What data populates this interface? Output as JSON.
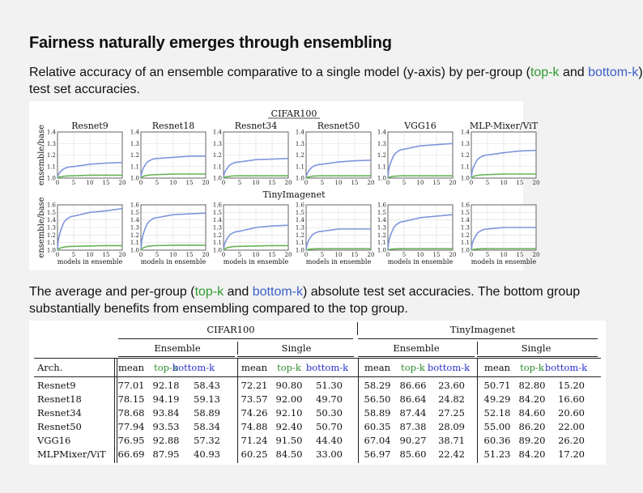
{
  "title": "Fairness naturally emerges through ensembling",
  "para1": {
    "before": "Relative accuracy of an ensemble comparative to a single model (y-axis) by per-group (",
    "topk": "top-k",
    "and": " and ",
    "bottomk": "bottom-k",
    "after": ") test set accuracies."
  },
  "para2": {
    "before": "The average and per-group (",
    "topk": "top-k",
    "and": " and ",
    "bottomk": "bottom-k",
    "after": ") absolute test set accuracies. The bottom group substantially benefits from ensembling compared to the top group."
  },
  "colors": {
    "topk": "#2e9a2e",
    "bottomk": "#3a5fc8",
    "plot_green": "#66b456",
    "plot_blue": "#7f95dc"
  },
  "figure": {
    "row_titles": [
      "CIFAR100",
      "TinyImagenet"
    ],
    "ylabel": "ensemble/base",
    "xlabel": "models in ensemble"
  },
  "chart_data": [
    {
      "type": "line",
      "dataset": "CIFAR100",
      "title": "Resnet9",
      "ylim": [
        1.0,
        1.4
      ],
      "yticks": [
        1.0,
        1.1,
        1.2,
        1.3,
        1.4
      ],
      "xticks": [
        0,
        5,
        10,
        15,
        20
      ],
      "series": [
        {
          "name": "bottom-k",
          "values": [
            1.0,
            1.1,
            1.12,
            1.13,
            1.135
          ]
        },
        {
          "name": "top-k",
          "values": [
            1.0,
            1.02,
            1.025,
            1.025,
            1.025
          ]
        }
      ]
    },
    {
      "type": "line",
      "dataset": "CIFAR100",
      "title": "Resnet18",
      "ylim": [
        1.0,
        1.4
      ],
      "yticks": [
        1.0,
        1.1,
        1.2,
        1.3,
        1.4
      ],
      "xticks": [
        0,
        5,
        10,
        15,
        20
      ],
      "series": [
        {
          "name": "bottom-k",
          "values": [
            1.0,
            1.17,
            1.18,
            1.19,
            1.19
          ]
        },
        {
          "name": "top-k",
          "values": [
            1.0,
            1.03,
            1.035,
            1.035,
            1.035
          ]
        }
      ]
    },
    {
      "type": "line",
      "dataset": "CIFAR100",
      "title": "Resnet34",
      "ylim": [
        1.0,
        1.4
      ],
      "yticks": [
        1.0,
        1.1,
        1.2,
        1.3,
        1.4
      ],
      "xticks": [
        0,
        5,
        10,
        15,
        20
      ],
      "series": [
        {
          "name": "bottom-k",
          "values": [
            1.0,
            1.14,
            1.16,
            1.165,
            1.17
          ]
        },
        {
          "name": "top-k",
          "values": [
            1.0,
            1.02,
            1.02,
            1.02,
            1.02
          ]
        }
      ]
    },
    {
      "type": "line",
      "dataset": "CIFAR100",
      "title": "Resnet50",
      "ylim": [
        1.0,
        1.4
      ],
      "yticks": [
        1.0,
        1.1,
        1.2,
        1.3,
        1.4
      ],
      "xticks": [
        0,
        5,
        10,
        15,
        20
      ],
      "series": [
        {
          "name": "bottom-k",
          "values": [
            1.0,
            1.12,
            1.14,
            1.15,
            1.155
          ]
        },
        {
          "name": "top-k",
          "values": [
            1.0,
            1.02,
            1.02,
            1.02,
            1.02
          ]
        }
      ]
    },
    {
      "type": "line",
      "dataset": "CIFAR100",
      "title": "VGG16",
      "ylim": [
        1.0,
        1.4
      ],
      "yticks": [
        1.0,
        1.1,
        1.2,
        1.3,
        1.4
      ],
      "xticks": [
        0,
        5,
        10,
        15,
        20
      ],
      "series": [
        {
          "name": "bottom-k",
          "values": [
            1.0,
            1.25,
            1.28,
            1.29,
            1.3
          ]
        },
        {
          "name": "top-k",
          "values": [
            1.0,
            1.02,
            1.02,
            1.02,
            1.02
          ]
        }
      ]
    },
    {
      "type": "line",
      "dataset": "CIFAR100",
      "title": "MLP-Mixer/ViT",
      "ylim": [
        1.0,
        1.4
      ],
      "yticks": [
        1.0,
        1.1,
        1.2,
        1.3,
        1.4
      ],
      "xticks": [
        0,
        5,
        10,
        15,
        20
      ],
      "series": [
        {
          "name": "bottom-k",
          "values": [
            1.0,
            1.2,
            1.22,
            1.235,
            1.24
          ]
        },
        {
          "name": "top-k",
          "values": [
            1.0,
            1.03,
            1.035,
            1.035,
            1.035
          ]
        }
      ]
    },
    {
      "type": "line",
      "dataset": "TinyImagenet",
      "title": "",
      "ylim": [
        1.0,
        1.6
      ],
      "yticks": [
        1.0,
        1.1,
        1.2,
        1.3,
        1.4,
        1.5,
        1.6
      ],
      "xticks": [
        0,
        5,
        10,
        15,
        20
      ],
      "series": [
        {
          "name": "bottom-k",
          "values": [
            1.0,
            1.45,
            1.5,
            1.52,
            1.55
          ]
        },
        {
          "name": "top-k",
          "values": [
            1.0,
            1.05,
            1.055,
            1.06,
            1.06
          ]
        }
      ]
    },
    {
      "type": "line",
      "dataset": "TinyImagenet",
      "title": "",
      "ylim": [
        1.0,
        1.6
      ],
      "yticks": [
        1.0,
        1.1,
        1.2,
        1.3,
        1.4,
        1.5,
        1.6
      ],
      "xticks": [
        0,
        5,
        10,
        15,
        20
      ],
      "series": [
        {
          "name": "bottom-k",
          "values": [
            1.0,
            1.43,
            1.47,
            1.48,
            1.49
          ]
        },
        {
          "name": "top-k",
          "values": [
            1.0,
            1.06,
            1.065,
            1.065,
            1.065
          ]
        }
      ]
    },
    {
      "type": "line",
      "dataset": "TinyImagenet",
      "title": "",
      "ylim": [
        1.0,
        1.6
      ],
      "yticks": [
        1.0,
        1.1,
        1.2,
        1.3,
        1.4,
        1.5,
        1.6
      ],
      "xticks": [
        0,
        5,
        10,
        15,
        20
      ],
      "series": [
        {
          "name": "bottom-k",
          "values": [
            1.0,
            1.25,
            1.3,
            1.32,
            1.33
          ]
        },
        {
          "name": "top-k",
          "values": [
            1.0,
            1.05,
            1.055,
            1.06,
            1.06
          ]
        }
      ]
    },
    {
      "type": "line",
      "dataset": "TinyImagenet",
      "title": "",
      "ylim": [
        1.0,
        1.6
      ],
      "yticks": [
        1.0,
        1.1,
        1.2,
        1.3,
        1.4,
        1.5,
        1.6
      ],
      "xticks": [
        0,
        5,
        10,
        15,
        20
      ],
      "series": [
        {
          "name": "bottom-k",
          "values": [
            1.0,
            1.25,
            1.28,
            1.28,
            1.28
          ]
        },
        {
          "name": "top-k",
          "values": [
            1.0,
            1.02,
            1.02,
            1.02,
            1.02
          ]
        }
      ]
    },
    {
      "type": "line",
      "dataset": "TinyImagenet",
      "title": "",
      "ylim": [
        1.0,
        1.6
      ],
      "yticks": [
        1.0,
        1.1,
        1.2,
        1.3,
        1.4,
        1.5,
        1.6
      ],
      "xticks": [
        0,
        5,
        10,
        15,
        20
      ],
      "series": [
        {
          "name": "bottom-k",
          "values": [
            1.0,
            1.38,
            1.43,
            1.45,
            1.47
          ]
        },
        {
          "name": "top-k",
          "values": [
            1.0,
            1.02,
            1.02,
            1.02,
            1.02
          ]
        }
      ]
    },
    {
      "type": "line",
      "dataset": "TinyImagenet",
      "title": "",
      "ylim": [
        1.0,
        1.6
      ],
      "yticks": [
        1.0,
        1.1,
        1.2,
        1.3,
        1.4,
        1.5,
        1.6
      ],
      "xticks": [
        0,
        5,
        10,
        15,
        20
      ],
      "series": [
        {
          "name": "bottom-k",
          "values": [
            1.0,
            1.28,
            1.3,
            1.3,
            1.3
          ]
        },
        {
          "name": "top-k",
          "values": [
            1.0,
            1.02,
            1.02,
            1.02,
            1.02
          ]
        }
      ]
    }
  ],
  "table": {
    "groups": [
      "CIFAR100",
      "TinyImagenet"
    ],
    "subgroups": [
      "Ensemble",
      "Single",
      "Ensemble",
      "Single"
    ],
    "arch_header": "Arch.",
    "col_headers": [
      "mean",
      "top-k",
      "bottom-k",
      "mean",
      "top-k",
      "bottom-k",
      "mean",
      "top-k",
      "bottom-k",
      "mean",
      "top-k",
      "bottom-k"
    ],
    "rows": [
      {
        "arch": "Resnet9",
        "values": [
          "77.01",
          "92.18",
          "58.43",
          "72.21",
          "90.80",
          "51.30",
          "58.29",
          "86.66",
          "23.60",
          "50.71",
          "82.80",
          "15.20"
        ]
      },
      {
        "arch": "Resnet18",
        "values": [
          "78.15",
          "94.19",
          "59.13",
          "73.57",
          "92.00",
          "49.70",
          "56.50",
          "86.64",
          "24.82",
          "49.29",
          "84.20",
          "16.60"
        ]
      },
      {
        "arch": "Resnet34",
        "values": [
          "78.68",
          "93.84",
          "58.89",
          "74.26",
          "92.10",
          "50.30",
          "58.89",
          "87.44",
          "27.25",
          "52.18",
          "84.60",
          "20.60"
        ]
      },
      {
        "arch": "Resnet50",
        "values": [
          "77.94",
          "93.53",
          "58.34",
          "74.88",
          "92.40",
          "50.70",
          "60.35",
          "87.38",
          "28.09",
          "55.00",
          "86.20",
          "22.00"
        ]
      },
      {
        "arch": "VGG16",
        "values": [
          "76.95",
          "92.88",
          "57.32",
          "71.24",
          "91.50",
          "44.40",
          "67.04",
          "90.27",
          "38.71",
          "60.36",
          "89.20",
          "26.20"
        ]
      },
      {
        "arch": "MLPMixer/ViT",
        "values": [
          "66.69",
          "87.95",
          "40.93",
          "60.25",
          "84.50",
          "33.00",
          "56.97",
          "85.60",
          "22.42",
          "51.23",
          "84.20",
          "17.20"
        ]
      }
    ]
  }
}
